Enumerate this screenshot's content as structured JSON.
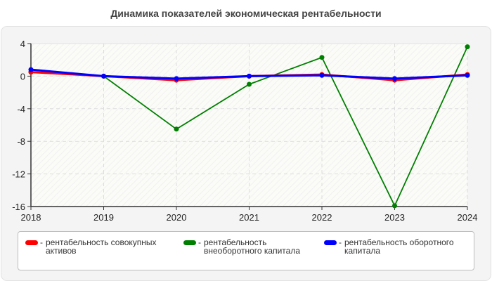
{
  "title": "Динамика показателей экономическая рентабельности",
  "chart_data": {
    "type": "line",
    "title": "Динамика показателей экономическая рентабельности",
    "xlabel": "",
    "ylabel": "",
    "x": [
      "2018",
      "2019",
      "2020",
      "2021",
      "2022",
      "2023",
      "2024"
    ],
    "y_ticks": [
      4,
      0,
      -4,
      -8,
      -12,
      -16
    ],
    "ylim": [
      -16,
      4
    ],
    "grid": true,
    "legend_position": "bottom",
    "series": [
      {
        "name": "рентабельность совокупных активов",
        "color": "#ff0000",
        "values": [
          0.5,
          0.0,
          -0.5,
          0.0,
          0.2,
          -0.5,
          0.2
        ]
      },
      {
        "name": "рентабельность внеоборотного капитала",
        "color": "#008000",
        "values": [
          0.5,
          0.0,
          -6.5,
          -1.0,
          2.3,
          -15.9,
          3.6
        ]
      },
      {
        "name": "рентабельность оборотного капитала",
        "color": "#0000ff",
        "values": [
          0.8,
          0.0,
          -0.3,
          0.0,
          0.1,
          -0.3,
          0.1
        ]
      }
    ]
  },
  "legend": {
    "separator": "-",
    "items": [
      {
        "label": "рентабельность совокупных активов",
        "color": "#ff0000"
      },
      {
        "label": "рентабельность внеоборотного капитала",
        "color": "#008000"
      },
      {
        "label": "рентабельность оборотного капитала",
        "color": "#0000ff"
      }
    ]
  }
}
